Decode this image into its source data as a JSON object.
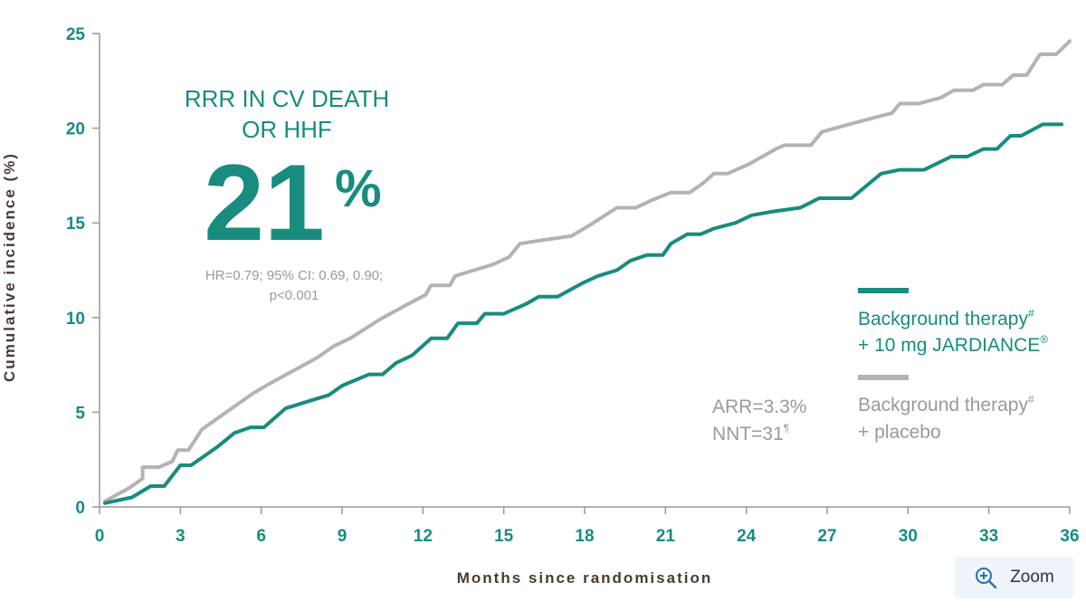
{
  "chart_data": {
    "type": "line",
    "xlabel": "Months since randomisation",
    "ylabel": "Cumulative incidence (%)",
    "xlim": [
      0,
      36
    ],
    "ylim": [
      0,
      25
    ],
    "x_ticks": [
      0,
      3,
      6,
      9,
      12,
      15,
      18,
      21,
      24,
      27,
      30,
      33,
      36
    ],
    "y_ticks": [
      0,
      5,
      10,
      15,
      20,
      25
    ],
    "grid": false,
    "legend_position": "right",
    "series": [
      {
        "name": "Background therapy# + 10 mg JARDIANCE®",
        "color": "#178c7f",
        "points": [
          [
            0.2,
            0.2
          ],
          [
            1.2,
            0.5
          ],
          [
            1.9,
            1.1
          ],
          [
            2.4,
            1.1
          ],
          [
            3.0,
            2.2
          ],
          [
            3.4,
            2.2
          ],
          [
            4.4,
            3.2
          ],
          [
            5.0,
            3.9
          ],
          [
            5.6,
            4.2
          ],
          [
            6.1,
            4.2
          ],
          [
            6.9,
            5.2
          ],
          [
            7.8,
            5.6
          ],
          [
            8.5,
            5.9
          ],
          [
            9.0,
            6.4
          ],
          [
            10.0,
            7.0
          ],
          [
            10.5,
            7.0
          ],
          [
            11.0,
            7.6
          ],
          [
            11.6,
            8.0
          ],
          [
            12.3,
            8.9
          ],
          [
            12.9,
            8.9
          ],
          [
            13.3,
            9.7
          ],
          [
            14.0,
            9.7
          ],
          [
            14.3,
            10.2
          ],
          [
            15.0,
            10.2
          ],
          [
            15.8,
            10.7
          ],
          [
            16.3,
            11.1
          ],
          [
            17.0,
            11.1
          ],
          [
            17.9,
            11.8
          ],
          [
            18.5,
            12.2
          ],
          [
            19.2,
            12.5
          ],
          [
            19.7,
            13.0
          ],
          [
            20.3,
            13.3
          ],
          [
            20.9,
            13.3
          ],
          [
            21.2,
            13.9
          ],
          [
            21.8,
            14.4
          ],
          [
            22.3,
            14.4
          ],
          [
            22.8,
            14.7
          ],
          [
            23.6,
            15.0
          ],
          [
            24.2,
            15.4
          ],
          [
            25.0,
            15.6
          ],
          [
            26.0,
            15.8
          ],
          [
            26.7,
            16.3
          ],
          [
            27.9,
            16.3
          ],
          [
            29.0,
            17.6
          ],
          [
            29.7,
            17.8
          ],
          [
            30.6,
            17.8
          ],
          [
            31.6,
            18.5
          ],
          [
            32.2,
            18.5
          ],
          [
            32.8,
            18.9
          ],
          [
            33.3,
            18.9
          ],
          [
            33.8,
            19.6
          ],
          [
            34.2,
            19.6
          ],
          [
            35.0,
            20.2
          ],
          [
            35.7,
            20.2
          ]
        ]
      },
      {
        "name": "Background therapy# + placebo",
        "color": "#b3b3b3",
        "points": [
          [
            0.2,
            0.3
          ],
          [
            1.1,
            1.0
          ],
          [
            1.6,
            1.5
          ],
          [
            1.6,
            2.1
          ],
          [
            2.2,
            2.1
          ],
          [
            2.7,
            2.4
          ],
          [
            2.9,
            3.0
          ],
          [
            3.3,
            3.0
          ],
          [
            3.8,
            4.1
          ],
          [
            4.4,
            4.7
          ],
          [
            5.0,
            5.3
          ],
          [
            5.7,
            6.0
          ],
          [
            6.3,
            6.5
          ],
          [
            7.2,
            7.2
          ],
          [
            8.1,
            7.9
          ],
          [
            8.7,
            8.5
          ],
          [
            9.3,
            8.9
          ],
          [
            10.4,
            9.9
          ],
          [
            11.3,
            10.6
          ],
          [
            12.1,
            11.2
          ],
          [
            12.3,
            11.7
          ],
          [
            13.0,
            11.7
          ],
          [
            13.2,
            12.2
          ],
          [
            14.6,
            12.8
          ],
          [
            15.2,
            13.2
          ],
          [
            15.6,
            13.9
          ],
          [
            16.5,
            14.1
          ],
          [
            17.5,
            14.3
          ],
          [
            18.1,
            14.8
          ],
          [
            19.2,
            15.8
          ],
          [
            19.9,
            15.8
          ],
          [
            20.5,
            16.2
          ],
          [
            21.2,
            16.6
          ],
          [
            21.9,
            16.6
          ],
          [
            22.4,
            17.1
          ],
          [
            22.8,
            17.6
          ],
          [
            23.3,
            17.6
          ],
          [
            24.1,
            18.1
          ],
          [
            25.1,
            18.9
          ],
          [
            25.4,
            19.1
          ],
          [
            26.4,
            19.1
          ],
          [
            26.8,
            19.8
          ],
          [
            27.8,
            20.2
          ],
          [
            29.4,
            20.8
          ],
          [
            29.7,
            21.3
          ],
          [
            30.4,
            21.3
          ],
          [
            31.2,
            21.6
          ],
          [
            31.7,
            22.0
          ],
          [
            32.4,
            22.0
          ],
          [
            32.8,
            22.3
          ],
          [
            33.5,
            22.3
          ],
          [
            33.9,
            22.8
          ],
          [
            34.4,
            22.8
          ],
          [
            34.9,
            23.9
          ],
          [
            35.5,
            23.9
          ],
          [
            36.0,
            24.6
          ]
        ]
      }
    ],
    "annotations": {
      "headline_line1": "RRR IN CV DEATH",
      "headline_line2": "OR HHF",
      "big_value": "21",
      "big_unit": "%",
      "stat_line1": "HR=0.79; 95% CI: 0.69, 0.90;",
      "stat_line2": "p<0.001",
      "arr": "ARR=3.3%",
      "nnt": "NNT=31",
      "nnt_sup": "¶"
    },
    "legend": [
      {
        "line1": "Background therapy",
        "line1_sup": "#",
        "line2": "+ 10 mg JARDIANCE",
        "line2_sup": "®",
        "color": "#178c7f"
      },
      {
        "line1": "Background therapy",
        "line1_sup": "#",
        "line2": "+ placebo",
        "line2_sup": "",
        "color": "#9a9a9a"
      }
    ]
  },
  "zoom": {
    "label": "Zoom",
    "icon": "zoom-in-icon"
  }
}
